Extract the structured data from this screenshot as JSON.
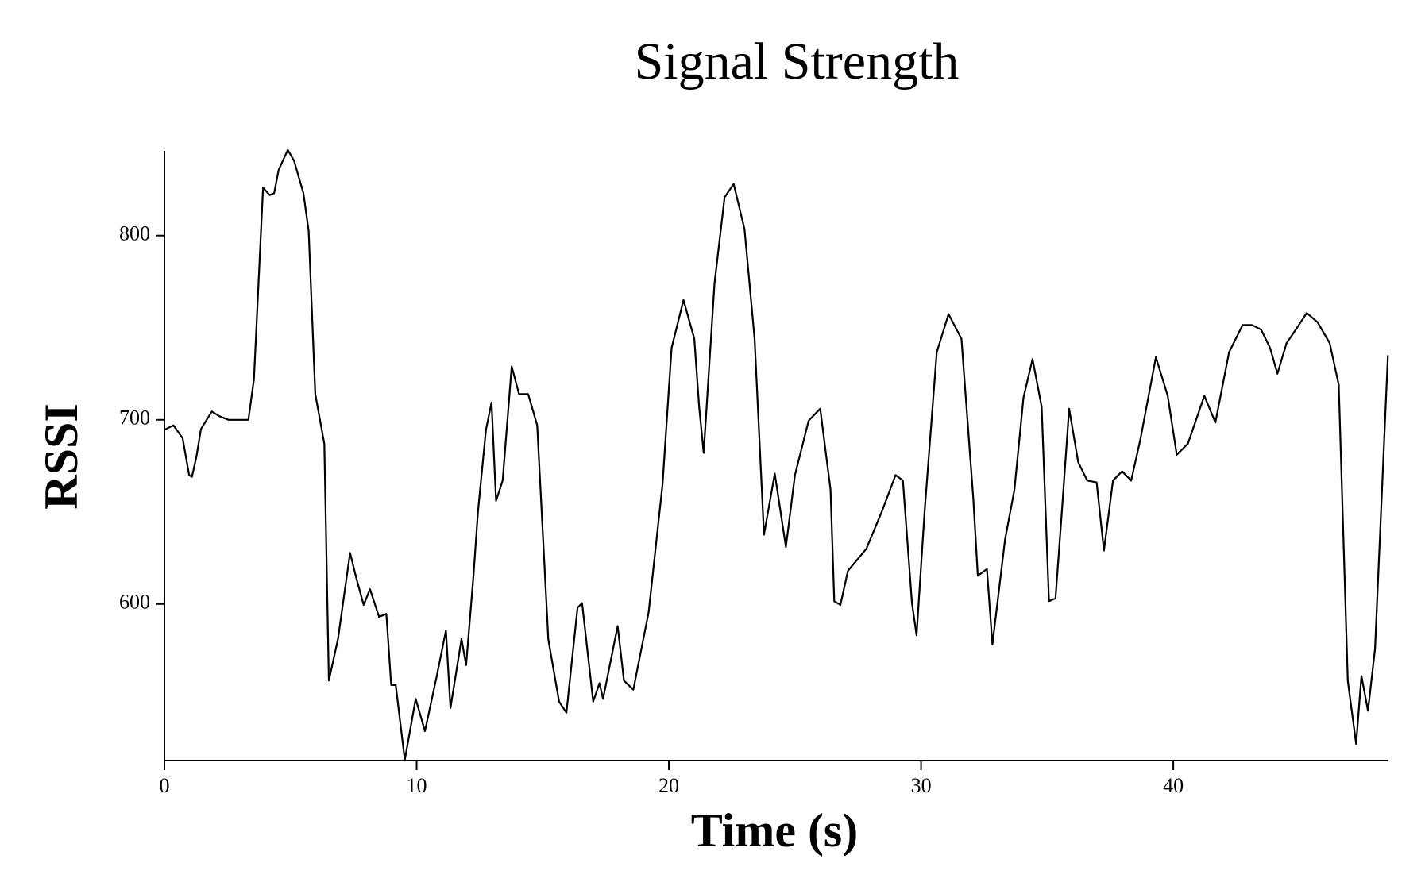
{
  "chart_data": {
    "type": "line",
    "title": "Signal Strength",
    "xlabel": "Time (s)",
    "ylabel": "RSSI",
    "color": "#000000",
    "x": [
      0,
      0.36,
      0.72,
      0.98,
      1.09,
      1.27,
      1.45,
      1.88,
      2.17,
      2.54,
      3.33,
      3.55,
      3.91,
      4.17,
      4.35,
      4.53,
      4.89,
      5.14,
      5.51,
      5.72,
      5.98,
      6.34,
      6.52,
      6.88,
      7.36,
      7.61,
      7.9,
      8.15,
      8.51,
      8.8,
      8.99,
      9.17,
      9.53,
      9.96,
      10.33,
      10.8,
      11.16,
      11.34,
      11.78,
      11.96,
      12.25,
      12.43,
      12.75,
      12.97,
      13.15,
      13.41,
      13.77,
      14.06,
      14.42,
      14.78,
      15.22,
      15.65,
      15.94,
      16.38,
      16.56,
      17.0,
      17.25,
      17.39,
      17.97,
      18.22,
      18.59,
      19.2,
      19.75,
      20.11,
      20.58,
      21.01,
      21.2,
      21.38,
      21.81,
      22.21,
      22.57,
      23.0,
      23.4,
      23.77,
      24.2,
      24.64,
      25.0,
      25.54,
      26.0,
      26.41,
      26.56,
      26.8,
      27.1,
      27.83,
      28.44,
      28.99,
      29.28,
      29.64,
      29.82,
      30.14,
      30.62,
      31.09,
      31.6,
      32.07,
      32.25,
      32.61,
      32.83,
      33.33,
      33.7,
      34.06,
      34.42,
      34.78,
      35.07,
      35.33,
      35.58,
      35.87,
      36.23,
      36.59,
      36.96,
      37.25,
      37.61,
      37.97,
      38.33,
      38.7,
      39.31,
      39.78,
      40.14,
      40.58,
      41.23,
      41.67,
      42.21,
      42.75,
      43.12,
      43.48,
      43.84,
      44.13,
      44.49,
      44.86,
      45.29,
      45.72,
      46.2,
      46.56,
      46.92,
      47.25,
      47.46,
      47.72,
      48.0,
      48.51
    ],
    "values": [
      694.6,
      697,
      690,
      670,
      669,
      680,
      695,
      704.5,
      702,
      700,
      700,
      722,
      826,
      822,
      823,
      835.6,
      846.5,
      840.6,
      823,
      802.5,
      714,
      687,
      558.4,
      581,
      627.7,
      614,
      599.5,
      608,
      593,
      594.6,
      556,
      556,
      515.3,
      548.5,
      531,
      561,
      585.6,
      543.5,
      581,
      566.8,
      615,
      650,
      694.6,
      709.4,
      656,
      667,
      729,
      714,
      714,
      697,
      580.7,
      547,
      541,
      598,
      600.5,
      547,
      557,
      548.5,
      588,
      558.4,
      553.5,
      595.5,
      665,
      739,
      765,
      744,
      707,
      682,
      773.8,
      820.8,
      828,
      803.5,
      744,
      637.6,
      670.8,
      631,
      670,
      699.5,
      706,
      662,
      601.5,
      599.5,
      618,
      630,
      650,
      670,
      667,
      600.5,
      583,
      650,
      736.6,
      757.4,
      744,
      657.4,
      615.3,
      619,
      578,
      635,
      662,
      712,
      733,
      707,
      601.5,
      603,
      650,
      706,
      677,
      667,
      666,
      629,
      667,
      672,
      667,
      689.6,
      734,
      713,
      681,
      687,
      713,
      698.5,
      736.6,
      751.5,
      751.5,
      749,
      739,
      725,
      741.6,
      749,
      758,
      753,
      741.6,
      719,
      558.4,
      524,
      561,
      542,
      575.7,
      735
    ],
    "xlim": [
      0,
      48.5
    ],
    "ylim": [
      515,
      846
    ],
    "xticks": [
      0,
      10,
      20,
      30,
      40
    ],
    "yticks": [
      600,
      700,
      800
    ]
  }
}
